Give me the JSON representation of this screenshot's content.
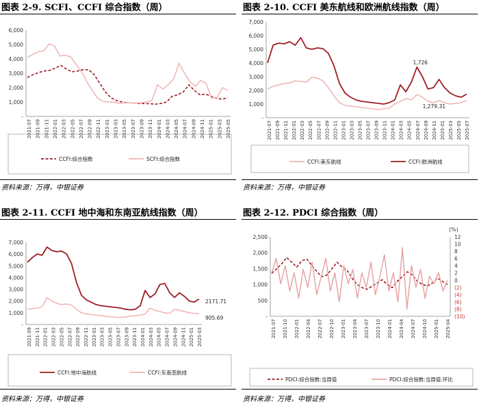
{
  "panels": [
    {
      "title": "图表 2-9. SCFI、CCFI 综合指数（周）",
      "source": "资料来源：万得，中银证券",
      "chart_data": {
        "type": "line",
        "ylim": [
          0,
          6000
        ],
        "yticks": [
          "-",
          "1,000",
          "2,000",
          "3,000",
          "4,000",
          "5,000",
          "6,000"
        ],
        "x_tick_labels": [
          "2021-07",
          "2021-09",
          "2021-11",
          "2022-01",
          "2022-03",
          "2022-05",
          "2022-07",
          "2022-09",
          "2022-11",
          "2023-01",
          "2023-03",
          "2023-05",
          "2023-07",
          "2023-09",
          "2023-11",
          "2024-01",
          "2024-03",
          "2024-05",
          "2024-07",
          "2024-09",
          "2024-11",
          "2025-01",
          "2025-03",
          "2025-05"
        ],
        "legend_position": "bottom",
        "grid": false,
        "annotations": [],
        "series": [
          {
            "name": "CCFI:综合指数",
            "color": "#9e1c24",
            "dash": true,
            "values": [
              2700,
              2900,
              3050,
              3150,
              3200,
              3350,
              3550,
              3300,
              3100,
              3150,
              3250,
              3250,
              2900,
              2300,
              1700,
              1300,
              1100,
              1000,
              950,
              930,
              900,
              890,
              880,
              850,
              900,
              1000,
              1400,
              1500,
              1700,
              2200,
              1800,
              1500,
              1550,
              1400,
              1250,
              1200,
              1300
            ]
          },
          {
            "name": "SCFI:综合指数",
            "color": "#f0b3b3",
            "dash": false,
            "values": [
              4100,
              4300,
              4500,
              4550,
              5050,
              4900,
              4200,
              4250,
              4150,
              3600,
              3100,
              2400,
              1800,
              1250,
              1050,
              1000,
              980,
              900,
              950,
              940,
              930,
              950,
              1000,
              1100,
              2200,
              1900,
              2200,
              2600,
              3700,
              3000,
              2400,
              2100,
              2500,
              2300,
              1250,
              1300,
              2000,
              1800
            ]
          }
        ]
      }
    },
    {
      "title": "图表 2-10. CCFI 美东航线和欧洲航线指数（周）",
      "source": "资料来源：万得，中银证券",
      "chart_data": {
        "type": "line",
        "ylim": [
          0,
          7000
        ],
        "yticks": [
          "-",
          "1,000",
          "2,000",
          "3,000",
          "4,000",
          "5,000",
          "6,000",
          "7,000"
        ],
        "x_tick_labels": [
          "2021-07",
          "2021-09",
          "2021-11",
          "2022-01",
          "2022-03",
          "2022-05",
          "2022-07",
          "2022-09",
          "2022-11",
          "2023-01",
          "2023-03",
          "2023-05",
          "2023-07",
          "2023-09",
          "2023-11",
          "2024-01",
          "2024-03",
          "2024-05",
          "2024-07",
          "2024-09",
          "2024-11",
          "2025-01",
          "2025-03",
          "2025-05",
          "2025-07"
        ],
        "legend_position": "bottom",
        "grid": false,
        "annotations": [
          {
            "label": "1,726",
            "series": "CCFI:欧洲航线",
            "x": "2025-07"
          },
          {
            "label": "1,279.31",
            "series": "CCFI:美东航线",
            "x": "2025-07"
          }
        ],
        "series": [
          {
            "name": "CCFI:美东航线",
            "color": "#f0b3b3",
            "dash": false,
            "values": [
              2100,
              2300,
              2400,
              2500,
              2550,
              2700,
              2650,
              2600,
              2950,
              2900,
              2700,
              2200,
              1600,
              1100,
              900,
              850,
              800,
              750,
              700,
              650,
              600,
              650,
              700,
              1000,
              1200,
              1400,
              1300,
              1700,
              1500,
              1200,
              1100,
              1250,
              1100,
              1000,
              1050,
              1100,
              1279.31
            ]
          },
          {
            "name": "CCFI:欧洲航线",
            "color": "#9e1c24",
            "dash": false,
            "values": [
              4000,
              5300,
              5450,
              5400,
              5550,
              5300,
              5850,
              5100,
              5000,
              5100,
              5050,
              4700,
              3800,
              2500,
              1800,
              1500,
              1300,
              1200,
              1150,
              1100,
              1050,
              1000,
              1100,
              1300,
              2400,
              1900,
              2600,
              3700,
              3000,
              2100,
              2200,
              2800,
              2200,
              1800,
              1600,
              1500,
              1726
            ]
          }
        ]
      }
    },
    {
      "title": "图表 2-11. CCFI 地中海和东南亚航线指数（周）",
      "source": "资料来源：万得，中银证券",
      "chart_data": {
        "type": "line",
        "ylim": [
          0,
          7000
        ],
        "yticks": [
          "-",
          "1,000",
          "2,000",
          "3,000",
          "4,000",
          "5,000",
          "6,000",
          "7,000"
        ],
        "x_tick_labels": [
          "2021-09",
          "2021-11",
          "2022-01",
          "2022-03",
          "2022-05",
          "2022-07",
          "2022-09",
          "2022-11",
          "2023-01",
          "2023-03",
          "2023-05",
          "2023-07",
          "2023-09",
          "2023-11",
          "2024-01",
          "2024-03",
          "2024-05",
          "2024-07",
          "2024-09",
          "2024-11",
          "2025-01",
          "2025-03"
        ],
        "legend_position": "bottom",
        "grid": false,
        "annotations": [
          {
            "label": "2171.71",
            "series": "CCFI:地中海航线",
            "x": "2025-03"
          },
          {
            "label": "905.69",
            "series": "CCFI:东南亚航线",
            "x": "2025-03"
          }
        ],
        "series": [
          {
            "name": "CCFI:地中海航线",
            "color": "#9e1c24",
            "dash": false,
            "values": [
              5300,
              5700,
              6000,
              5900,
              6600,
              6300,
              6200,
              6250,
              6000,
              5200,
              3600,
              2500,
              2100,
              1900,
              1700,
              1600,
              1550,
              1500,
              1450,
              1400,
              1300,
              1250,
              1300,
              1600,
              2900,
              2300,
              2600,
              3400,
              3500,
              2700,
              2300,
              2700,
              2400,
              2000,
              1900,
              2171.71
            ]
          },
          {
            "name": "CCFI:东南亚航线",
            "color": "#f0b3b3",
            "dash": false,
            "values": [
              1300,
              1350,
              1400,
              1500,
              2300,
              2000,
              1800,
              1700,
              1750,
              1650,
              1300,
              1000,
              900,
              850,
              800,
              750,
              700,
              650,
              620,
              600,
              650,
              700,
              750,
              800,
              900,
              1400,
              1200,
              1100,
              1000,
              950,
              1300,
              1200,
              1100,
              1000,
              950,
              905.69
            ]
          }
        ]
      }
    },
    {
      "title": "图表 2-12. PDCI 综合指数（周）",
      "source": "资料来源：万得，中银证券",
      "chart_data": {
        "type": "line",
        "ylim": [
          0,
          2500
        ],
        "y2lim": [
          -10,
          12
        ],
        "y2_unit": "(%)",
        "yticks": [
          "-",
          "500",
          "1,000",
          "1,500",
          "2,000",
          "2,500"
        ],
        "y2ticks": [
          "(10)",
          "(8)",
          "(6)",
          "(4)",
          "(2)",
          "0",
          "2",
          "4",
          "6",
          "8",
          "10",
          "12"
        ],
        "x_tick_labels": [
          "2021-07",
          "2021-10",
          "2022-01",
          "2022-04",
          "2022-07",
          "2022-10",
          "2023-01",
          "2023-04",
          "2023-07",
          "2023-10",
          "2024-01",
          "2024-04",
          "2024-07",
          "2024-10",
          "2025-01",
          "2025-04"
        ],
        "legend_position": "bottom",
        "grid": false,
        "annotations": [],
        "series": [
          {
            "name": "PDCI:综合指数:当周值",
            "color": "#9e1c24",
            "dash": true,
            "axis": "left",
            "values": [
              1350,
              1500,
              1650,
              1850,
              1700,
              1550,
              1750,
              1800,
              1600,
              1400,
              1250,
              1300,
              1500,
              1700,
              1550,
              1450,
              1200,
              1000,
              900,
              850,
              950,
              1050,
              1150,
              1000,
              900,
              1100,
              1250,
              1400,
              1300,
              1100,
              1000,
              950,
              1050,
              1200,
              1100,
              1000
            ]
          },
          {
            "name": "PDCI:综合指数:当周值:环比",
            "color": "#e8a3a3",
            "dash": false,
            "axis": "right",
            "values": [
              2,
              6,
              -1,
              4,
              -3,
              2,
              -5,
              3,
              -2,
              5,
              -4,
              1,
              6,
              -3,
              2,
              -6,
              4,
              -1,
              3,
              -5,
              2,
              -2,
              5,
              -4,
              1,
              7,
              -3,
              2,
              -6,
              9,
              -8,
              4,
              -2,
              3,
              -5,
              1,
              -1,
              2,
              -3,
              0
            ]
          }
        ]
      }
    }
  ]
}
